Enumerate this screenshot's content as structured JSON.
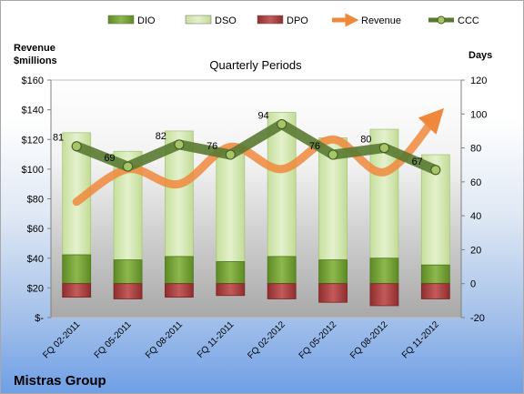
{
  "company": "Mistras Group",
  "chart_data": {
    "type": "bar",
    "title": "Quarterly Periods",
    "left_axis_title": "Revenue\n$millions",
    "right_axis_title": "Days",
    "categories": [
      "FQ 02-2011",
      "FQ 05-2011",
      "FQ 08-2011",
      "FQ 11-2011",
      "FQ 02-2012",
      "FQ 05-2012",
      "FQ 08-2012",
      "FQ 11-2012"
    ],
    "left_ticks": [
      "$-",
      "$20",
      "$40",
      "$60",
      "$80",
      "$100",
      "$120",
      "$140",
      "$160"
    ],
    "right_ticks": [
      "-20",
      "0",
      "20",
      "40",
      "60",
      "80",
      "100",
      "120"
    ],
    "ylim_left": [
      0,
      160
    ],
    "ylim_right": [
      -20,
      120
    ],
    "legend": [
      "DIO",
      "DSO",
      "DPO",
      "Revenue",
      "CCC"
    ],
    "legend_position": "top",
    "series": [
      {
        "name": "DIO",
        "axis": "right",
        "color": "#7ba23c",
        "values": [
          17,
          14,
          16,
          13,
          16,
          14,
          15,
          11
        ]
      },
      {
        "name": "DSO",
        "axis": "right",
        "color": "#d6e8b0",
        "values": [
          72,
          64,
          74,
          67,
          85,
          72,
          76,
          65
        ]
      },
      {
        "name": "DPO",
        "axis": "right",
        "color": "#b84a4a",
        "values": [
          -8,
          -9,
          -8,
          -7,
          -9,
          -11,
          -13,
          -9
        ]
      },
      {
        "name": "Revenue",
        "axis": "left",
        "color": "#f0883c",
        "values": [
          78,
          100,
          90,
          115,
          100,
          120,
          98,
          135
        ]
      },
      {
        "name": "CCC",
        "axis": "right",
        "color": "#5a7a32",
        "values": [
          81,
          69,
          82,
          76,
          94,
          76,
          80,
          67
        ]
      }
    ],
    "data_labels": [
      "81",
      "69",
      "82",
      "76",
      "94",
      "76",
      "80",
      "67"
    ],
    "grid": false
  }
}
